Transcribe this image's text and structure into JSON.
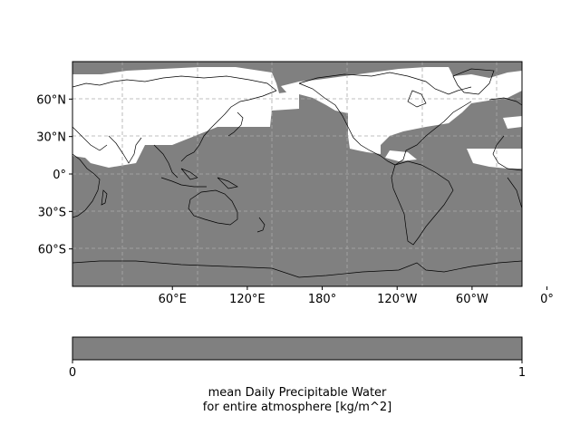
{
  "map": {
    "projection": "PlateCarree",
    "central_longitude": 160,
    "lon_ticks": [
      {
        "lon": 60,
        "label": "60°E"
      },
      {
        "lon": 120,
        "label": "120°E"
      },
      {
        "lon": 180,
        "label": "180°"
      },
      {
        "lon": 240,
        "label": "120°W"
      },
      {
        "lon": 300,
        "label": "60°W"
      },
      {
        "lon": 360,
        "label": "0°"
      }
    ],
    "lat_ticks": [
      {
        "lat": 60,
        "label": "60°N"
      },
      {
        "lat": 30,
        "label": "30°N"
      },
      {
        "lat": 0,
        "label": "0°"
      },
      {
        "lat": -30,
        "label": "30°S"
      },
      {
        "lat": -60,
        "label": "60°S"
      }
    ],
    "fill_color": "#808080",
    "no_data_color": "#ffffff",
    "gridlines": "dashed"
  },
  "colorbar": {
    "min_label": "0",
    "max_label": "1",
    "label_line1": "mean Daily Precipitable Water",
    "label_line2": "for entire atmosphere [kg/m^2]",
    "color": "#808080"
  }
}
